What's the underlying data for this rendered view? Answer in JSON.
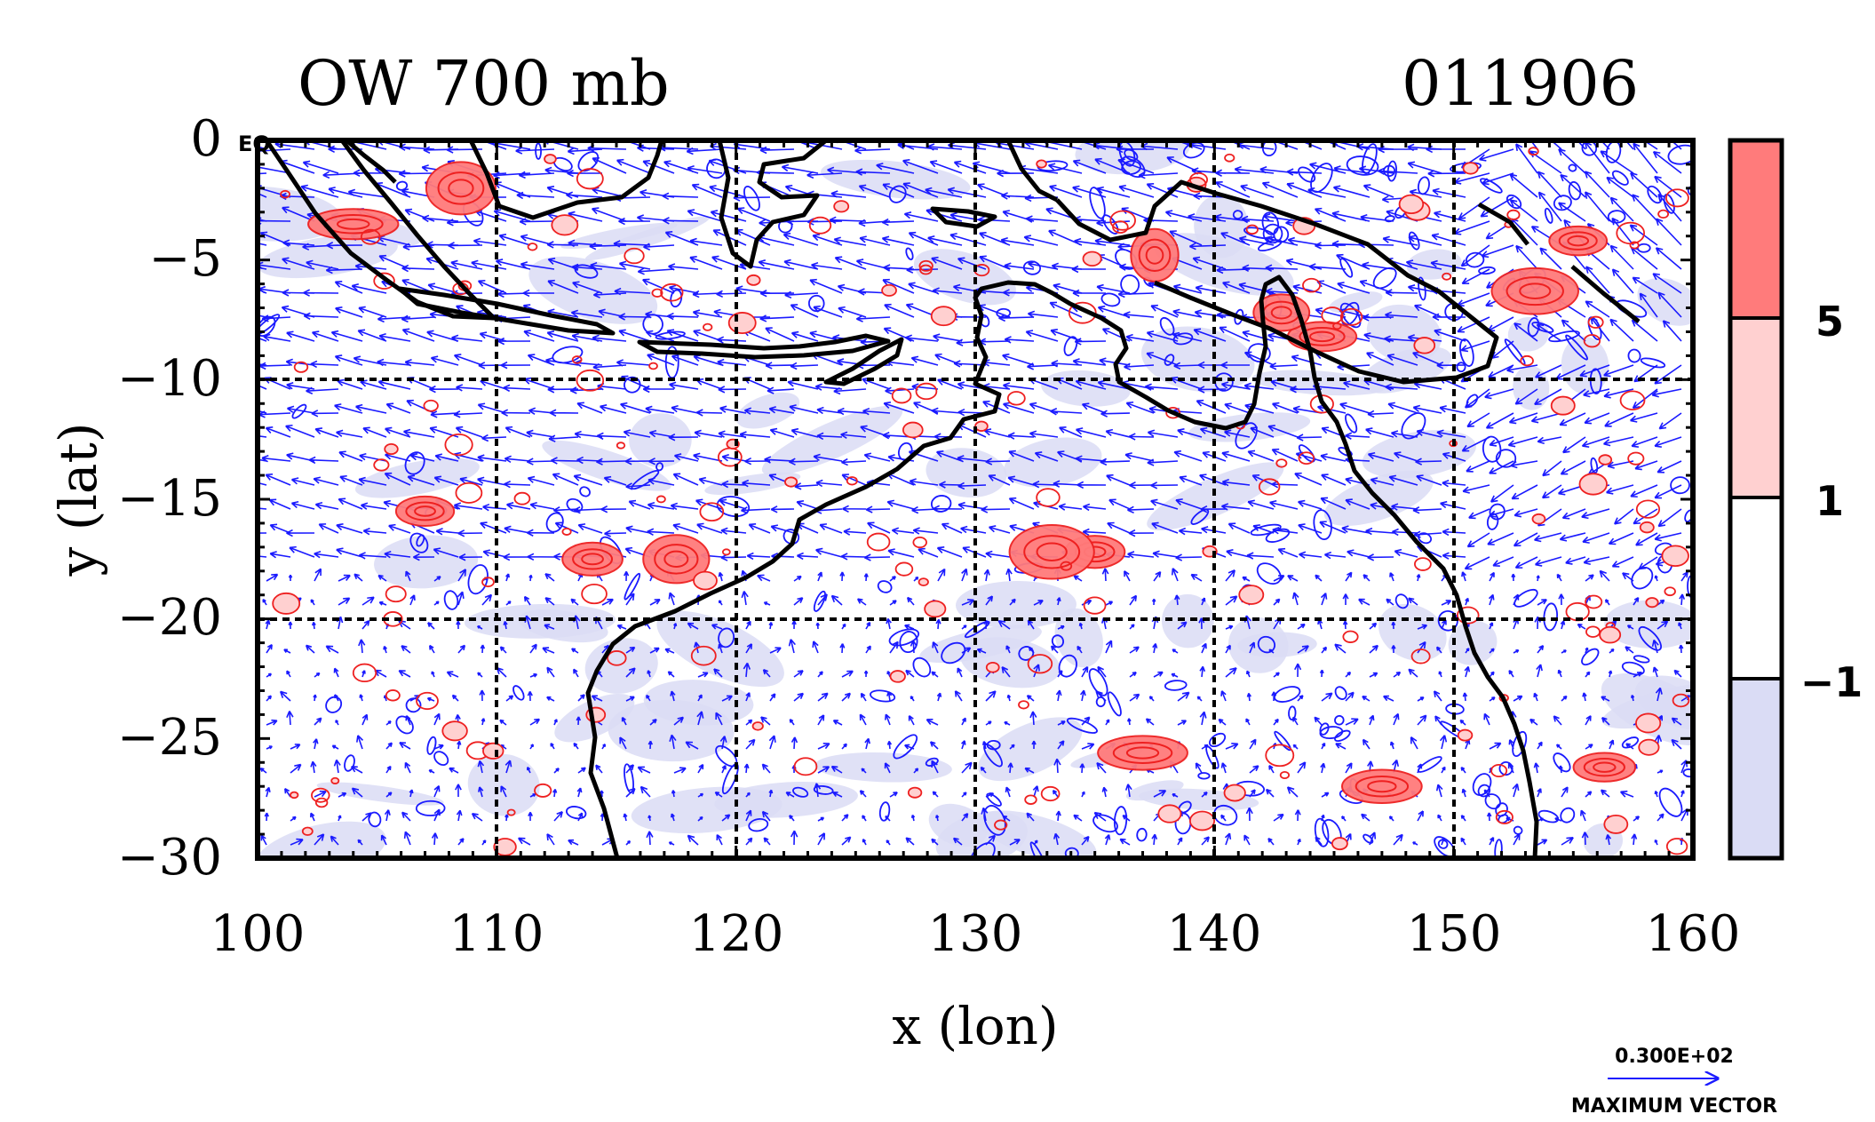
{
  "title": "OW 700 mb",
  "date_label": "011906",
  "eq_label": "EQ",
  "x_axis": {
    "label": "x (lon)",
    "ticks": [
      "100",
      "110",
      "120",
      "130",
      "140",
      "150",
      "160"
    ]
  },
  "y_axis": {
    "label": "y (lat)",
    "ticks": [
      "0",
      "−5",
      "−10",
      "−15",
      "−20",
      "−25",
      "−30"
    ]
  },
  "colorbar": {
    "labels": [
      "5",
      "1",
      "−1"
    ]
  },
  "vector_key": {
    "value": "0.300E+02",
    "label": "MAXIMUM VECTOR"
  },
  "colors": {
    "positive": "#ff7b7b",
    "light_positive": "#ffd0d0",
    "negative": "#dadcf5",
    "vector": "#1a1aff",
    "contour_pos": "#ee2020",
    "coast": "#000000"
  },
  "chart_data": {
    "type": "contour_vector_map",
    "lon_range": [
      100,
      160
    ],
    "lat_range": [
      -30,
      0
    ],
    "grid": true,
    "levels": [
      -1,
      1,
      5
    ],
    "vector_max": 30,
    "positive_centers": [
      {
        "lon": 104,
        "lat": -3.5
      },
      {
        "lon": 108.5,
        "lat": -2
      },
      {
        "lon": 107,
        "lat": -15.5
      },
      {
        "lon": 114,
        "lat": -17.5
      },
      {
        "lon": 117.5,
        "lat": -17.5
      },
      {
        "lon": 135,
        "lat": -17.2
      },
      {
        "lon": 133.2,
        "lat": -17.2
      },
      {
        "lon": 137.5,
        "lat": -4.8
      },
      {
        "lon": 144.5,
        "lat": -8.2
      },
      {
        "lon": 142.8,
        "lat": -7.2
      },
      {
        "lon": 153.4,
        "lat": -6.3
      },
      {
        "lon": 155.2,
        "lat": -4.2
      },
      {
        "lon": 156.3,
        "lat": -26.2
      },
      {
        "lon": 137,
        "lat": -25.6
      },
      {
        "lon": 147,
        "lat": -27
      }
    ]
  }
}
